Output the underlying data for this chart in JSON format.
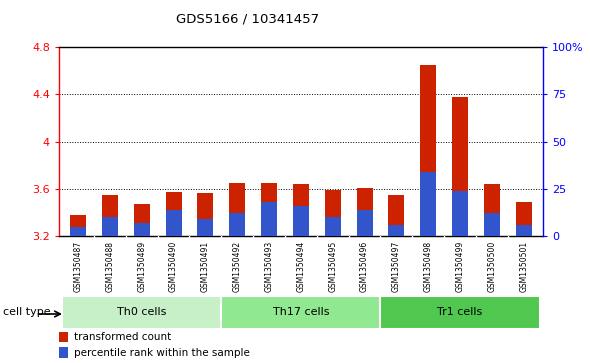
{
  "title": "GDS5166 / 10341457",
  "samples": [
    "GSM1350487",
    "GSM1350488",
    "GSM1350489",
    "GSM1350490",
    "GSM1350491",
    "GSM1350492",
    "GSM1350493",
    "GSM1350494",
    "GSM1350495",
    "GSM1350496",
    "GSM1350497",
    "GSM1350498",
    "GSM1350499",
    "GSM1350500",
    "GSM1350501"
  ],
  "transformed_count": [
    3.38,
    3.55,
    3.47,
    3.57,
    3.56,
    3.65,
    3.65,
    3.64,
    3.59,
    3.61,
    3.55,
    4.65,
    4.38,
    3.64,
    3.49
  ],
  "percentile_rank": [
    5,
    10,
    7,
    14,
    9,
    12,
    18,
    16,
    10,
    14,
    6,
    34,
    24,
    12,
    6
  ],
  "ylim_left": [
    3.2,
    4.8
  ],
  "ylim_right": [
    0,
    100
  ],
  "yticks_left": [
    3.2,
    3.6,
    4.0,
    4.4,
    4.8
  ],
  "yticks_right": [
    0,
    25,
    50,
    75,
    100
  ],
  "ytick_labels_left": [
    "3.2",
    "3.6",
    "4",
    "4.4",
    "4.8"
  ],
  "ytick_labels_right": [
    "0",
    "25",
    "50",
    "75",
    "100%"
  ],
  "cell_types": [
    {
      "label": "Th0 cells",
      "start": 0,
      "end": 5,
      "color": "#c8f0c8"
    },
    {
      "label": "Th17 cells",
      "start": 5,
      "end": 10,
      "color": "#90e890"
    },
    {
      "label": "Tr1 cells",
      "start": 10,
      "end": 15,
      "color": "#50c850"
    }
  ],
  "bar_color_red": "#cc2200",
  "bar_color_blue": "#3355cc",
  "bar_width": 0.5,
  "base_value": 3.2,
  "background_plot": "#ffffff",
  "background_xlabels": "#d0d0d0",
  "legend_red_label": "transformed count",
  "legend_blue_label": "percentile rank within the sample",
  "cell_type_label": "cell type",
  "dotted_grid_values": [
    3.6,
    4.0,
    4.4
  ]
}
